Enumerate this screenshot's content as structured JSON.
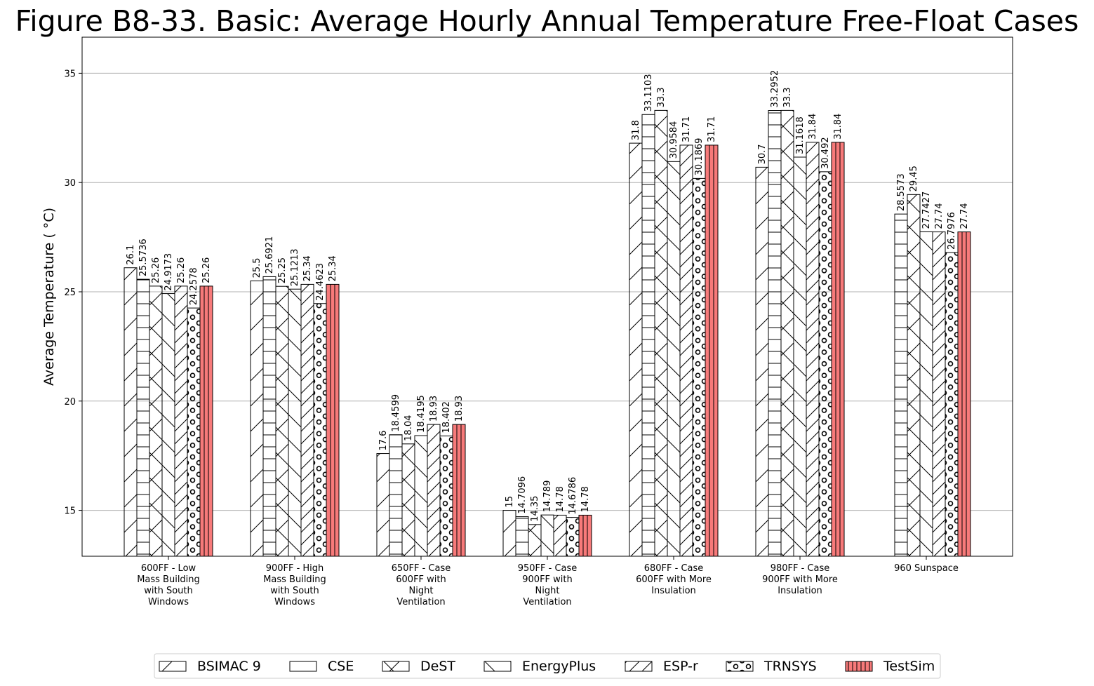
{
  "chart_data": {
    "type": "bar",
    "title": "Figure B8-33. Basic: Average Hourly Annual Temperature Free-Float Cases",
    "xlabel": "",
    "ylabel": "Average Temperature ( °C)",
    "ylim": [
      12.9,
      36.65
    ],
    "yticks": [
      15,
      20,
      25,
      30,
      35
    ],
    "grid": "y",
    "legend_position": "bottom-center",
    "categories": [
      [
        "600FF - Low",
        "Mass Building",
        "with South",
        "Windows"
      ],
      [
        "900FF - High",
        "Mass Building",
        "with South",
        "Windows"
      ],
      [
        "650FF - Case",
        "600FF with",
        "Night",
        "Ventilation"
      ],
      [
        "950FF - Case",
        "900FF with",
        "Night",
        "Ventilation"
      ],
      [
        "680FF - Case",
        "600FF with More",
        "Insulation"
      ],
      [
        "980FF - Case",
        "900FF with More",
        "Insulation"
      ],
      [
        "960 Sunspace"
      ]
    ],
    "series": [
      {
        "name": "BSIMAC 9",
        "hatch": "diag-fwd",
        "color": "#ffffff",
        "values": [
          26.1,
          25.5,
          17.6,
          15,
          31.8,
          30.7,
          null
        ],
        "labels": [
          "26.1",
          "25.5",
          "17.6",
          "15",
          "31.8",
          "30.7",
          ""
        ]
      },
      {
        "name": "CSE",
        "hatch": "horizontal",
        "color": "#ffffff",
        "values": [
          25.5736,
          25.6921,
          18.4599,
          14.7096,
          33.1103,
          33.2952,
          28.5573
        ],
        "labels": [
          "25.5736",
          "25.6921",
          "18.4599",
          "14.7096",
          "33.1103",
          "33.2952",
          "28.5573"
        ]
      },
      {
        "name": "DeST",
        "hatch": "cross",
        "color": "#ffffff",
        "values": [
          25.26,
          25.25,
          18.04,
          14.35,
          33.3,
          33.3,
          29.45
        ],
        "labels": [
          "25.26",
          "25.25",
          "18.04",
          "14.35",
          "33.3",
          "33.3",
          "29.45"
        ]
      },
      {
        "name": "EnergyPlus",
        "hatch": "diag-back",
        "color": "#ffffff",
        "values": [
          24.9173,
          25.1213,
          18.4195,
          14.789,
          30.9584,
          31.1618,
          27.7427
        ],
        "labels": [
          "24.9173",
          "25.1213",
          "18.4195",
          "14.789",
          "30.9584",
          "31.1618",
          "27.7427"
        ]
      },
      {
        "name": "ESP-r",
        "hatch": "diag-dense",
        "color": "#ffffff",
        "values": [
          25.26,
          25.34,
          18.93,
          14.78,
          31.71,
          31.84,
          27.74
        ],
        "labels": [
          "25.26",
          "25.34",
          "18.93",
          "14.78",
          "31.71",
          "31.84",
          "27.74"
        ]
      },
      {
        "name": "TRNSYS",
        "hatch": "circles",
        "color": "#ffffff",
        "values": [
          24.2578,
          24.4623,
          18.402,
          14.6786,
          30.1869,
          30.492,
          26.7976
        ],
        "labels": [
          "24.2578",
          "24.4623",
          "18.402",
          "14.6786",
          "30.1869",
          "30.492",
          "26.7976"
        ]
      },
      {
        "name": "TestSim",
        "hatch": "vertical",
        "color": "#f77a7a",
        "values": [
          25.26,
          25.34,
          18.93,
          14.78,
          31.71,
          31.84,
          27.74
        ],
        "labels": [
          "25.26",
          "25.34",
          "18.93",
          "14.78",
          "31.71",
          "31.84",
          "27.74"
        ]
      }
    ]
  }
}
